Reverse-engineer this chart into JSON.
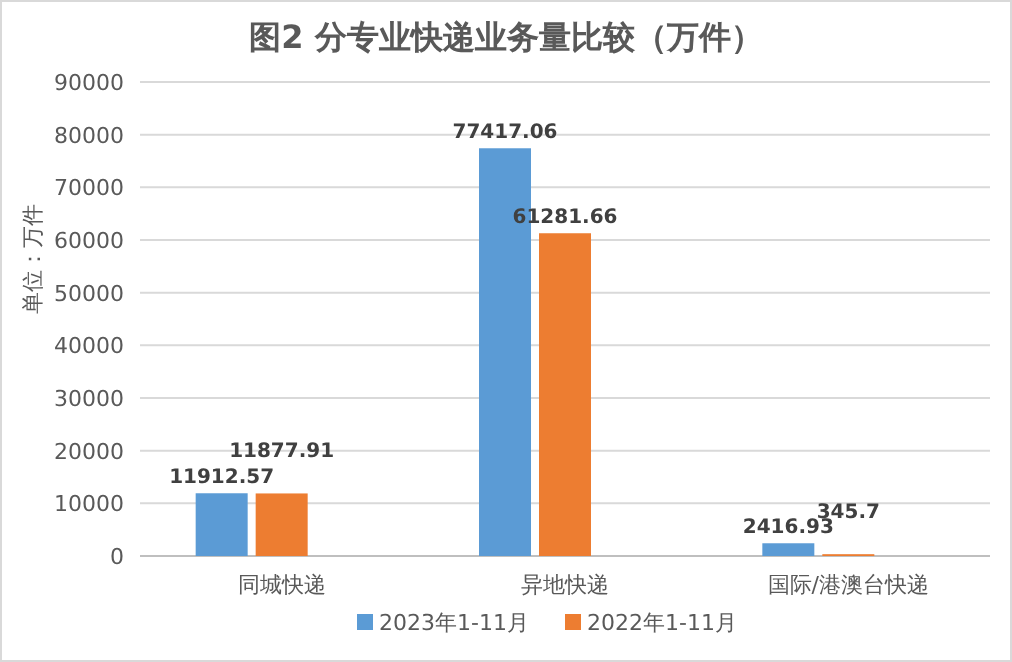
{
  "chart_data": {
    "type": "bar",
    "title": "图2 分专业快递业务量比较（万件）",
    "ylabel": "单位：万件",
    "categories": [
      "同城快递",
      "异地快递",
      "国际/港澳台快递"
    ],
    "series": [
      {
        "name": "2023年1-11月",
        "color": "#5b9bd5",
        "values": [
          11912.57,
          77417.06,
          2416.93
        ],
        "value_labels": [
          "11912.57",
          "77417.06",
          "2416.93"
        ]
      },
      {
        "name": "2022年1-11月",
        "color": "#ed7d31",
        "values": [
          11877.91,
          61281.66,
          345.7
        ],
        "value_labels": [
          "11877.91",
          "61281.66",
          "345.7"
        ]
      }
    ],
    "ylim": [
      0,
      90000
    ],
    "yticks": [
      0,
      10000,
      20000,
      30000,
      40000,
      50000,
      60000,
      70000,
      80000,
      90000
    ],
    "grid": "y",
    "legend": "bottom"
  }
}
